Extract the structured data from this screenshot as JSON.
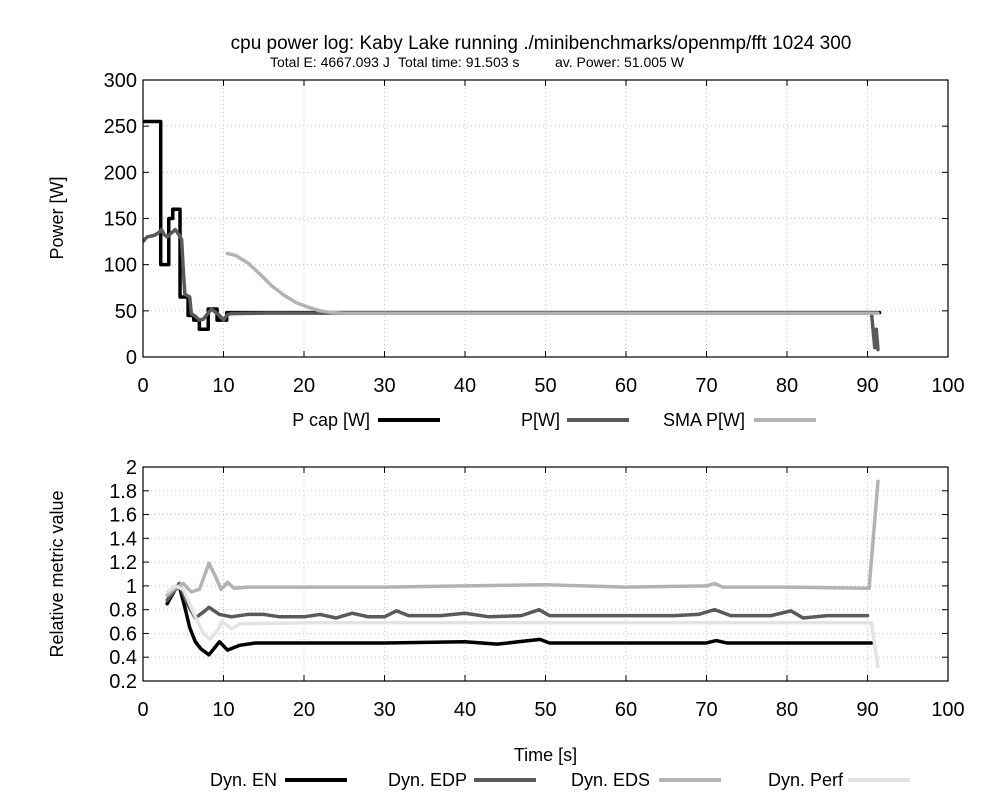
{
  "chart_data": [
    {
      "type": "line",
      "title": "cpu power log: Kaby Lake running ./minibenchmarks/openmp/fft 1024 300",
      "subtitle": {
        "energy": "Total E: 4667.093 J",
        "time": "Total time: 91.503 s",
        "power": "av. Power: 51.005 W"
      },
      "xlabel": "",
      "ylabel": "Power [W]",
      "xlim": [
        0,
        100
      ],
      "ylim": [
        0,
        300
      ],
      "xticks": [
        "0",
        "10",
        "20",
        "30",
        "40",
        "50",
        "60",
        "70",
        "80",
        "90",
        "100"
      ],
      "yticks": [
        "0",
        "50",
        "100",
        "150",
        "200",
        "250",
        "300"
      ],
      "grid": true,
      "legend_position": "bottom",
      "series": [
        {
          "name": "P cap [W]",
          "color": "#000000",
          "step": true,
          "points": [
            [
              0,
              255
            ],
            [
              2.2,
              255
            ],
            [
              2.2,
              100
            ],
            [
              3.2,
              100
            ],
            [
              3.2,
              150
            ],
            [
              3.7,
              150
            ],
            [
              3.7,
              160
            ],
            [
              4.6,
              160
            ],
            [
              4.6,
              65
            ],
            [
              5.6,
              65
            ],
            [
              5.6,
              45
            ],
            [
              6.3,
              45
            ],
            [
              6.3,
              40
            ],
            [
              7.0,
              40
            ],
            [
              7.0,
              30
            ],
            [
              8.1,
              30
            ],
            [
              8.1,
              52
            ],
            [
              9.2,
              52
            ],
            [
              9.2,
              40
            ],
            [
              10.4,
              40
            ],
            [
              10.4,
              48
            ],
            [
              91.5,
              48
            ]
          ]
        },
        {
          "name": "P[W]",
          "color": "#5a5a5a",
          "points": [
            [
              0,
              125
            ],
            [
              0.5,
              130
            ],
            [
              1,
              131
            ],
            [
              1.5,
              132
            ],
            [
              2,
              135
            ],
            [
              2.3,
              138
            ],
            [
              2.6,
              133
            ],
            [
              3,
              130
            ],
            [
              3.5,
              134
            ],
            [
              4,
              138
            ],
            [
              4.5,
              132
            ],
            [
              4.8,
              127
            ],
            [
              5,
              95
            ],
            [
              5.2,
              68
            ],
            [
              5.8,
              65
            ],
            [
              6.0,
              47
            ],
            [
              6.5,
              44
            ],
            [
              7,
              40
            ],
            [
              7.5,
              41
            ],
            [
              8.5,
              52
            ],
            [
              9.5,
              45
            ],
            [
              10,
              40
            ],
            [
              10.5,
              46
            ],
            [
              11,
              47
            ],
            [
              15,
              47.5
            ],
            [
              20,
              47.5
            ],
            [
              30,
              47.5
            ],
            [
              40,
              47.5
            ],
            [
              50,
              47.5
            ],
            [
              60,
              47.5
            ],
            [
              70,
              47.5
            ],
            [
              80,
              47.5
            ],
            [
              90.5,
              47.5
            ],
            [
              90.9,
              10
            ],
            [
              91.1,
              30
            ],
            [
              91.3,
              8
            ]
          ]
        },
        {
          "name": "SMA P[W]",
          "color": "#b3b3b3",
          "points": [
            [
              10.5,
              112
            ],
            [
              11.5,
              110
            ],
            [
              13,
              102
            ],
            [
              14.5,
              90
            ],
            [
              16,
              77
            ],
            [
              17.5,
              67
            ],
            [
              19,
              59
            ],
            [
              20.5,
              54
            ],
            [
              22,
              50
            ],
            [
              23.5,
              48
            ],
            [
              25,
              47.5
            ],
            [
              40,
              47.5
            ],
            [
              60,
              47.5
            ],
            [
              80,
              47.5
            ],
            [
              91.3,
              47.5
            ]
          ]
        }
      ]
    },
    {
      "type": "line",
      "title": "",
      "xlabel": "Time [s]",
      "ylabel": "Relative metric value",
      "xlim": [
        0,
        100
      ],
      "ylim": [
        0.2,
        2
      ],
      "xticks": [
        "0",
        "10",
        "20",
        "30",
        "40",
        "50",
        "60",
        "70",
        "80",
        "90",
        "100"
      ],
      "yticks": [
        "0.2",
        "0.4",
        "0.6",
        "0.8",
        "1",
        "1.2",
        "1.4",
        "1.6",
        "1.8",
        "2"
      ],
      "grid": true,
      "legend_position": "bottom",
      "series": [
        {
          "name": "Dyn. EN",
          "color": "#000000",
          "points": [
            [
              3,
              0.85
            ],
            [
              4,
              0.97
            ],
            [
              4.5,
              1.0
            ],
            [
              5.2,
              0.82
            ],
            [
              5.8,
              0.65
            ],
            [
              6.5,
              0.53
            ],
            [
              7.2,
              0.47
            ],
            [
              8.2,
              0.42
            ],
            [
              9.5,
              0.53
            ],
            [
              10.5,
              0.46
            ],
            [
              12,
              0.5
            ],
            [
              14,
              0.52
            ],
            [
              20,
              0.52
            ],
            [
              30,
              0.52
            ],
            [
              40,
              0.53
            ],
            [
              44,
              0.51
            ],
            [
              49.3,
              0.55
            ],
            [
              50.5,
              0.52
            ],
            [
              60,
              0.52
            ],
            [
              70,
              0.52
            ],
            [
              71.2,
              0.54
            ],
            [
              72.5,
              0.52
            ],
            [
              80,
              0.52
            ],
            [
              90.5,
              0.52
            ]
          ]
        },
        {
          "name": "Dyn. EDP",
          "color": "#5a5a5a",
          "points": [
            [
              3,
              0.88
            ],
            [
              4,
              0.97
            ],
            [
              4.5,
              1.02
            ],
            [
              5.5,
              0.85
            ],
            [
              6.5,
              0.73
            ],
            [
              7.5,
              0.78
            ],
            [
              8.2,
              0.82
            ],
            [
              9.5,
              0.76
            ],
            [
              11,
              0.74
            ],
            [
              13,
              0.76
            ],
            [
              15,
              0.76
            ],
            [
              17,
              0.74
            ],
            [
              20,
              0.74
            ],
            [
              22,
              0.76
            ],
            [
              24,
              0.73
            ],
            [
              26,
              0.77
            ],
            [
              28,
              0.74
            ],
            [
              30,
              0.74
            ],
            [
              31.5,
              0.79
            ],
            [
              33,
              0.75
            ],
            [
              37,
              0.75
            ],
            [
              40,
              0.77
            ],
            [
              43,
              0.74
            ],
            [
              47,
              0.75
            ],
            [
              49.2,
              0.8
            ],
            [
              50.5,
              0.75
            ],
            [
              55,
              0.75
            ],
            [
              60,
              0.75
            ],
            [
              66,
              0.75
            ],
            [
              69,
              0.76
            ],
            [
              71,
              0.8
            ],
            [
              73,
              0.75
            ],
            [
              78,
              0.75
            ],
            [
              80.5,
              0.79
            ],
            [
              82,
              0.73
            ],
            [
              85,
              0.75
            ],
            [
              90,
              0.75
            ]
          ]
        },
        {
          "name": "Dyn. EDS",
          "color": "#b3b3b3",
          "points": [
            [
              3,
              0.92
            ],
            [
              4,
              0.98
            ],
            [
              5,
              1.02
            ],
            [
              6,
              0.95
            ],
            [
              7,
              0.97
            ],
            [
              8.2,
              1.19
            ],
            [
              9,
              1.08
            ],
            [
              9.7,
              0.97
            ],
            [
              10.5,
              1.03
            ],
            [
              11.3,
              0.98
            ],
            [
              13,
              0.99
            ],
            [
              20,
              0.99
            ],
            [
              30,
              0.99
            ],
            [
              40,
              1.0
            ],
            [
              50,
              1.01
            ],
            [
              60,
              0.99
            ],
            [
              70,
              1.0
            ],
            [
              71,
              1.02
            ],
            [
              72,
              0.99
            ],
            [
              80,
              0.99
            ],
            [
              90.2,
              0.98
            ],
            [
              91.3,
              1.88
            ]
          ]
        },
        {
          "name": "Dyn. Perf",
          "color": "#e3e3e3",
          "points": [
            [
              3,
              0.95
            ],
            [
              4,
              1.0
            ],
            [
              5,
              0.97
            ],
            [
              5.6,
              0.88
            ],
            [
              6.3,
              0.77
            ],
            [
              7.5,
              0.6
            ],
            [
              8.3,
              0.55
            ],
            [
              9.2,
              0.62
            ],
            [
              9.8,
              0.7
            ],
            [
              11,
              0.64
            ],
            [
              12,
              0.68
            ],
            [
              20,
              0.69
            ],
            [
              30,
              0.69
            ],
            [
              40,
              0.69
            ],
            [
              50,
              0.69
            ],
            [
              60,
              0.69
            ],
            [
              70,
              0.69
            ],
            [
              80,
              0.69
            ],
            [
              90.5,
              0.69
            ],
            [
              91.3,
              0.32
            ]
          ]
        }
      ]
    }
  ]
}
